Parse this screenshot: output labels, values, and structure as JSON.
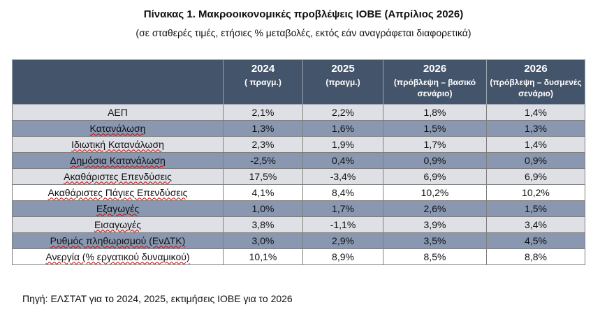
{
  "title": "Πίνακας 1. Μακροοικονομικές προβλέψεις ΙΟΒΕ (Απρίλιος 2026)",
  "subtitle": "(σε σταθερές τιμές, ετήσιες % μεταβολές, εκτός εάν αναγράφεται διαφορετικά)",
  "table": {
    "headers": [
      {
        "year": "",
        "note": ""
      },
      {
        "year": "2024",
        "note": "( πραγμ.)"
      },
      {
        "year": "2025",
        "note": "(πραγμ.)"
      },
      {
        "year": "2026",
        "note": "(πρόβλεψη – βασικό σενάριο)"
      },
      {
        "year": "2026",
        "note": "(πρόβλεψη – δυσμενές σενάριο)"
      }
    ],
    "rows": [
      {
        "label": "ΑΕΠ",
        "values": [
          "2,1%",
          "2,2%",
          "1,8%",
          "1,4%"
        ]
      },
      {
        "label": "Κατανάλωση",
        "values": [
          "1,3%",
          "1,6%",
          "1,5%",
          "1,3%"
        ]
      },
      {
        "label": "Ιδιωτική Κατανάλωση",
        "values": [
          "2,3%",
          "1,9%",
          "1,7%",
          "1,4%"
        ]
      },
      {
        "label": "Δημόσια Κατανάλωση",
        "values": [
          "-2,5%",
          "0,4%",
          "0,9%",
          "0,9%"
        ]
      },
      {
        "label": "Ακαθάριστες Επενδύσεις",
        "values": [
          "17,5%",
          "-3,4%",
          "6,9%",
          "6,9%"
        ]
      },
      {
        "label": "Ακαθάριστες Πάγιες Επενδύσεις",
        "values": [
          "4,1%",
          "8,4%",
          "10,2%",
          "10,2%"
        ]
      },
      {
        "label": "Εξαγωγές",
        "values": [
          "1,0%",
          "1,7%",
          "2,6%",
          "1,5%"
        ]
      },
      {
        "label": "Εισαγωγές",
        "values": [
          "3,8%",
          "-1,1%",
          "3,9%",
          "3,4%"
        ]
      },
      {
        "label": "Ρυθμός πληθωρισμού (ΕνΔΤΚ)",
        "values": [
          "3,0%",
          "2,9%",
          "3,5%",
          "4,5%"
        ]
      },
      {
        "label": "Ανεργία (% εργατικού δυναμικού)",
        "values": [
          "10,1%",
          "8,9%",
          "8,5%",
          "8,8%"
        ]
      }
    ]
  },
  "source": "Πηγή: ΕΛΣΤΑΤ για το 2024, 2025, εκτιμήσεις ΙΟΒΕ για το 2026",
  "colors": {
    "header_bg": "#44546a",
    "row_light": "#dee0e5",
    "row_dark": "#8997b0"
  }
}
